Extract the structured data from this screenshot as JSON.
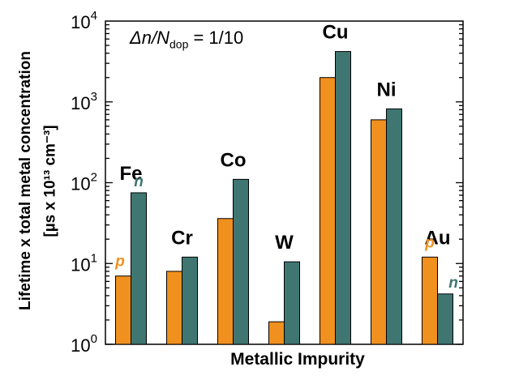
{
  "chart_data": {
    "type": "bar",
    "yscale": "log",
    "ylim": [
      1,
      10000
    ],
    "ytick_values": [
      1,
      10,
      100,
      1000,
      10000
    ],
    "ytick_labels": [
      {
        "base": "10",
        "exp": "0"
      },
      {
        "base": "10",
        "exp": "1"
      },
      {
        "base": "10",
        "exp": "2"
      },
      {
        "base": "10",
        "exp": "3"
      },
      {
        "base": "10",
        "exp": "4"
      }
    ],
    "xlabel": "Metallic Impurity",
    "ylabel_line1": "Lifetime x total metal concentration",
    "ylabel_line2": "[µs x 10¹³ cm⁻³]",
    "annotation": {
      "prefix": "Δn/N",
      "sub": "dop",
      "suffix": " = 1/10"
    },
    "categories": [
      "Fe",
      "Cr",
      "Co",
      "W",
      "Cu",
      "Ni",
      "Au"
    ],
    "series": [
      {
        "name": "p",
        "color": "#f0901e",
        "values": [
          7,
          8,
          36,
          1.9,
          2000,
          600,
          12
        ]
      },
      {
        "name": "n",
        "color": "#3f7672",
        "values": [
          75,
          12,
          110,
          10.5,
          4200,
          820,
          4.2
        ]
      }
    ],
    "series_tags": [
      {
        "category": "Fe",
        "label": "n",
        "series": "n"
      },
      {
        "category": "Fe",
        "label": "p",
        "series": "p"
      },
      {
        "category": "Au",
        "label": "p",
        "series": "p"
      },
      {
        "category": "Au",
        "label": "n",
        "series": "n"
      }
    ]
  }
}
